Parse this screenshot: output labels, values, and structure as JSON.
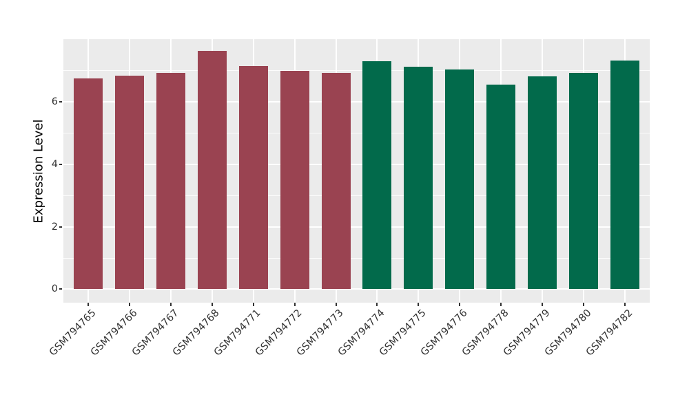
{
  "figure": {
    "background": "#FFFFFF",
    "panel_background": "#EBEBEB",
    "grid_color": "#FFFFFF",
    "tick_color": "#333333",
    "axis_text_color": "#333333"
  },
  "chart_data": {
    "type": "bar",
    "title": "",
    "xlabel": "",
    "ylabel": "Expression Level",
    "categories": [
      "GSM794765",
      "GSM794766",
      "GSM794767",
      "GSM794768",
      "GSM794771",
      "GSM794772",
      "GSM794773",
      "GSM794774",
      "GSM794775",
      "GSM794776",
      "GSM794778",
      "GSM794779",
      "GSM794780",
      "GSM794782"
    ],
    "values": [
      6.76,
      6.84,
      6.93,
      7.64,
      7.15,
      7.0,
      6.92,
      7.31,
      7.13,
      7.03,
      6.55,
      6.83,
      6.92,
      7.32
    ],
    "bar_colors": [
      "#9A4351",
      "#9A4351",
      "#9A4351",
      "#9A4351",
      "#9A4351",
      "#9A4351",
      "#9A4351",
      "#026A4B",
      "#026A4B",
      "#026A4B",
      "#026A4B",
      "#026A4B",
      "#026A4B",
      "#026A4B"
    ],
    "group_colors": {
      "left_group_hex": "#9A4351",
      "right_group_hex": "#026A4B",
      "left_count": 7,
      "right_count": 7
    },
    "yticks": [
      0,
      2,
      4,
      6
    ],
    "yticks_minor": [
      1,
      3,
      5,
      7
    ],
    "ylim": [
      -0.43,
      8.01
    ],
    "grid": true,
    "legend": "none",
    "bar_width_fraction": 0.7,
    "x_label_rotation_deg": 45
  }
}
